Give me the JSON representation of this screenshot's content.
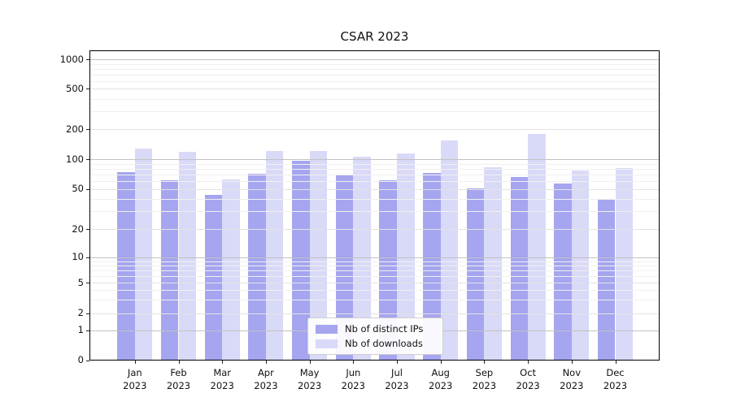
{
  "chart_data": {
    "type": "bar",
    "title": "CSAR 2023",
    "categories": [
      "Jan 2023",
      "Feb 2023",
      "Mar 2023",
      "Apr 2023",
      "May 2023",
      "Jun 2023",
      "Jul 2023",
      "Aug 2023",
      "Sep 2023",
      "Oct 2023",
      "Nov 2023",
      "Dec 2023"
    ],
    "series": [
      {
        "name": "Nb of distinct IPs",
        "color": "#a5a5f0",
        "values": [
          74,
          61,
          44,
          71,
          96,
          69,
          61,
          72,
          51,
          66,
          57,
          40
        ]
      },
      {
        "name": "Nb of downloads",
        "color": "#d9d9f8",
        "values": [
          127,
          118,
          62,
          121,
          122,
          105,
          114,
          154,
          83,
          180,
          77,
          81
        ]
      }
    ],
    "xlabel": "",
    "ylabel": "",
    "yscale": "symlog-asinh",
    "yticks": [
      1000,
      500,
      200,
      100,
      50,
      20,
      10,
      5,
      2,
      1,
      0
    ],
    "ylim": [
      0,
      1400
    ],
    "grid": "on",
    "grid_major_values": [
      1,
      10,
      100,
      1000
    ],
    "grid_minor_values": [
      2,
      5,
      20,
      50,
      200,
      500
    ],
    "legend_position": "lower center",
    "colors": {
      "grid_major": "#c2c2c2",
      "grid_minor": "#e3e3e3",
      "grid_subminor": "#f0f0f0",
      "spine": "#000000",
      "text": "#111111"
    }
  }
}
